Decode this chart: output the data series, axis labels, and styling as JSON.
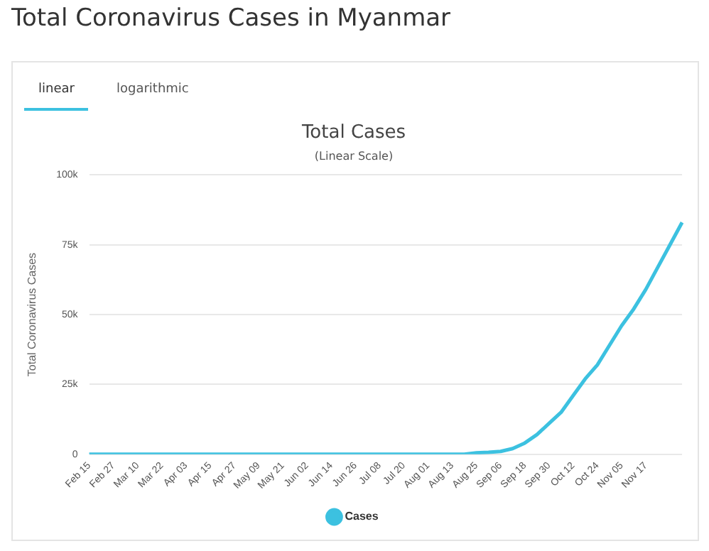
{
  "chart_data": {
    "type": "line",
    "title": "Total Cases",
    "subtitle": "(Linear Scale)",
    "ylabel": "Total Coronavirus Cases",
    "annotations": [
      "Total Coronavirus Cases in Myanmar",
      "linear",
      "logarithmic"
    ],
    "categories": [
      "Feb 15",
      null,
      "Feb 27",
      null,
      "Mar 10",
      null,
      "Mar 22",
      null,
      "Apr 03",
      null,
      "Apr 15",
      null,
      "Apr 27",
      null,
      "May 09",
      null,
      "May 21",
      null,
      "Jun 02",
      null,
      "Jun 14",
      null,
      "Jun 26",
      null,
      "Jul 08",
      null,
      "Jul 20",
      null,
      "Aug 01",
      null,
      "Aug 13",
      null,
      "Aug 25",
      null,
      "Sep 06",
      null,
      "Sep 18",
      null,
      "Sep 30",
      null,
      "Oct 12",
      null,
      "Oct 24",
      null,
      "Nov 05",
      null,
      "Nov 17",
      null,
      null,
      null
    ],
    "series": [
      {
        "name": "Cases",
        "color": "#3cc1e0",
        "values": [
          0,
          0,
          0,
          0,
          0,
          0,
          0,
          0,
          0,
          0,
          0,
          0,
          0,
          0,
          0,
          0,
          0,
          0,
          0,
          0,
          0,
          0,
          0,
          0,
          0,
          0,
          0,
          0,
          0,
          0,
          0,
          0,
          500,
          700,
          1000,
          2000,
          4000,
          7000,
          11000,
          15000,
          21000,
          27000,
          32000,
          39000,
          46000,
          52000,
          59000,
          67000,
          75000,
          83000
        ]
      }
    ],
    "ylim": [
      0,
      100000
    ],
    "yticks": [
      0,
      {
        "value": 25000,
        "label": "25k"
      },
      {
        "value": 50000,
        "label": "50k"
      },
      {
        "value": 75000,
        "label": "75k"
      },
      {
        "value": 100000,
        "label": "100k"
      }
    ],
    "grid": "y",
    "legend": "bottom",
    "marker": "none",
    "line_style": "solid"
  }
}
